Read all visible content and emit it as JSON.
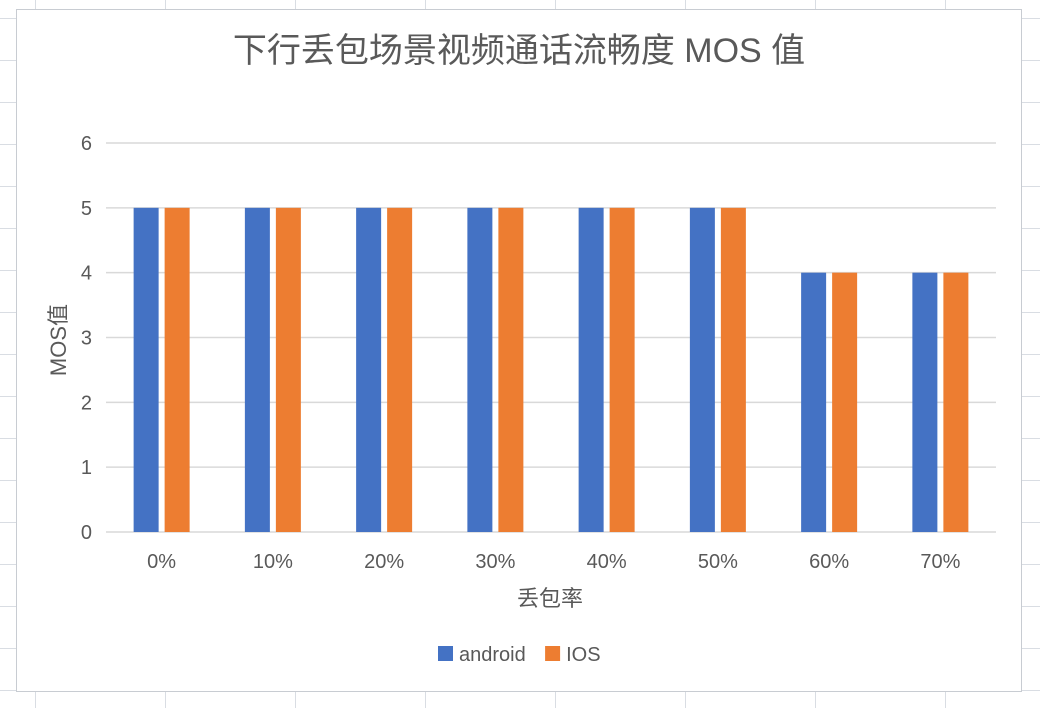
{
  "chart_data": {
    "type": "bar",
    "title": "下行丢包场景视频通话流畅度 MOS 值",
    "xlabel": "丢包率",
    "ylabel": "MOS值",
    "categories": [
      "0%",
      "10%",
      "20%",
      "30%",
      "40%",
      "50%",
      "60%",
      "70%"
    ],
    "series": [
      {
        "name": "android",
        "color": "#4472C4",
        "values": [
          5,
          5,
          5,
          5,
          5,
          5,
          4,
          4
        ]
      },
      {
        "name": "IOS",
        "color": "#ED7D31",
        "values": [
          5,
          5,
          5,
          5,
          5,
          5,
          4,
          4
        ]
      }
    ],
    "ylim": [
      0,
      6
    ],
    "yticks": [
      "0",
      "1",
      "2",
      "3",
      "4",
      "5",
      "6"
    ],
    "grid": true,
    "legend_position": "bottom"
  }
}
